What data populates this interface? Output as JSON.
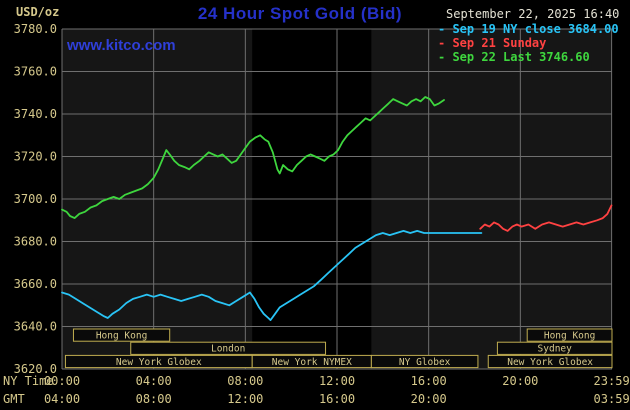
{
  "header": {
    "units": "USD/oz",
    "title": "24 Hour Spot Gold (Bid)",
    "datetime": "September 22, 2025 16:40",
    "watermark": "www.kitco.com"
  },
  "legend": {
    "items": [
      {
        "marker": "-",
        "label": "Sep 19 NY close 3684.00",
        "color": "#29c4f6"
      },
      {
        "marker": "-",
        "label": "Sep 21 Sunday",
        "color": "#ff4242"
      },
      {
        "marker": "-",
        "label": "Sep 22 Last 3746.60",
        "color": "#3ed63e"
      }
    ]
  },
  "axes": {
    "ny_time_label": "NY Time",
    "gmt_label": "GMT"
  },
  "chart_data": {
    "type": "line",
    "title": "24 Hour Spot Gold (Bid)",
    "ylabel": "USD/oz",
    "x_unit": "hours, NY time",
    "xlim": [
      0,
      24
    ],
    "ylim": [
      3620,
      3780
    ],
    "grid": true,
    "legend_position": "top-right",
    "colors": {
      "plot_bg": "#161616",
      "band": "#000000",
      "grid": "#6f6f6f",
      "axis_text": "#d6c98c",
      "session_box": "#c0ad50",
      "title_blue": "#2531c9"
    },
    "y_ticks": [
      {
        "value": 3780,
        "label": "3780.0"
      },
      {
        "value": 3760,
        "label": "3760.0"
      },
      {
        "value": 3740,
        "label": "3740.0"
      },
      {
        "value": 3720,
        "label": "3720.0"
      },
      {
        "value": 3700,
        "label": "3700.0"
      },
      {
        "value": 3680,
        "label": "3680.0"
      },
      {
        "value": 3660,
        "label": "3660.0"
      },
      {
        "value": 3640,
        "label": "3640.0"
      },
      {
        "value": 3620,
        "label": "3620.0"
      }
    ],
    "x_ticks": [
      {
        "hour": 0,
        "ny": "00:00",
        "gmt": "04:00"
      },
      {
        "hour": 4,
        "ny": "04:00",
        "gmt": "08:00"
      },
      {
        "hour": 8,
        "ny": "08:00",
        "gmt": "12:00"
      },
      {
        "hour": 12,
        "ny": "12:00",
        "gmt": "16:00"
      },
      {
        "hour": 16,
        "ny": "16:00",
        "gmt": "20:00"
      },
      {
        "hour": 20,
        "ny": "20:00",
        "gmt": ""
      },
      {
        "hour": 23.983,
        "ny": "23:59",
        "gmt": "03:59"
      }
    ],
    "bands": [
      {
        "from": 8.3,
        "to": 13.5,
        "note": "NYMEX floor session shading"
      }
    ],
    "sessions": [
      {
        "row": 1,
        "from": 0.5,
        "to": 4.7,
        "label": "Hong Kong"
      },
      {
        "row": 1,
        "from": 20.3,
        "to": 24,
        "label": "Hong Kong"
      },
      {
        "row": 2,
        "from": 3.0,
        "to": 11.5,
        "label": "London"
      },
      {
        "row": 2,
        "from": 19.0,
        "to": 24,
        "label": "Sydney"
      },
      {
        "row": 3,
        "from": 0.15,
        "to": 8.3,
        "label": "New York Globex"
      },
      {
        "row": 3,
        "from": 8.3,
        "to": 13.5,
        "label": "New York NYMEX"
      },
      {
        "row": 3,
        "from": 13.5,
        "to": 18.15,
        "label": "NY Globex"
      },
      {
        "row": 3,
        "from": 18.6,
        "to": 24,
        "label": "New York Globex"
      }
    ],
    "series": [
      {
        "id": "sep19-ny-close",
        "name": "Sep 19 NY close 3684.00",
        "color": "#29c4f6",
        "close": 3684.0,
        "points": [
          [
            0,
            3656
          ],
          [
            0.3,
            3655
          ],
          [
            0.6,
            3653
          ],
          [
            0.9,
            3651
          ],
          [
            1.2,
            3649
          ],
          [
            1.5,
            3647
          ],
          [
            1.8,
            3645
          ],
          [
            2,
            3644
          ],
          [
            2.2,
            3646
          ],
          [
            2.5,
            3648
          ],
          [
            2.8,
            3651
          ],
          [
            3.1,
            3653
          ],
          [
            3.4,
            3654
          ],
          [
            3.7,
            3655
          ],
          [
            4,
            3654
          ],
          [
            4.3,
            3655
          ],
          [
            4.6,
            3654
          ],
          [
            4.9,
            3653
          ],
          [
            5.2,
            3652
          ],
          [
            5.5,
            3653
          ],
          [
            5.8,
            3654
          ],
          [
            6.1,
            3655
          ],
          [
            6.4,
            3654
          ],
          [
            6.7,
            3652
          ],
          [
            7,
            3651
          ],
          [
            7.3,
            3650
          ],
          [
            7.6,
            3652
          ],
          [
            7.9,
            3654
          ],
          [
            8.2,
            3656
          ],
          [
            8.4,
            3653
          ],
          [
            8.6,
            3649
          ],
          [
            8.8,
            3646
          ],
          [
            9,
            3644
          ],
          [
            9.1,
            3643
          ],
          [
            9.3,
            3646
          ],
          [
            9.5,
            3649
          ],
          [
            9.8,
            3651
          ],
          [
            10.1,
            3653
          ],
          [
            10.4,
            3655
          ],
          [
            10.7,
            3657
          ],
          [
            11,
            3659
          ],
          [
            11.3,
            3662
          ],
          [
            11.6,
            3665
          ],
          [
            11.9,
            3668
          ],
          [
            12.2,
            3671
          ],
          [
            12.5,
            3674
          ],
          [
            12.8,
            3677
          ],
          [
            13.1,
            3679
          ],
          [
            13.4,
            3681
          ],
          [
            13.7,
            3683
          ],
          [
            14,
            3684
          ],
          [
            14.3,
            3683
          ],
          [
            14.6,
            3684
          ],
          [
            14.9,
            3685
          ],
          [
            15.2,
            3684
          ],
          [
            15.5,
            3685
          ],
          [
            15.8,
            3684
          ],
          [
            16.1,
            3684
          ],
          [
            16.5,
            3684
          ],
          [
            17.2,
            3684
          ],
          [
            18.3,
            3684
          ]
        ]
      },
      {
        "id": "sep21-sunday",
        "name": "Sep 21 Sunday",
        "color": "#ff4242",
        "points": [
          [
            18.25,
            3686
          ],
          [
            18.45,
            3688
          ],
          [
            18.65,
            3687
          ],
          [
            18.85,
            3689
          ],
          [
            19.05,
            3688
          ],
          [
            19.25,
            3686
          ],
          [
            19.45,
            3685
          ],
          [
            19.65,
            3687
          ],
          [
            19.85,
            3688
          ],
          [
            20.05,
            3687
          ],
          [
            20.35,
            3688
          ],
          [
            20.65,
            3686
          ],
          [
            20.95,
            3688
          ],
          [
            21.25,
            3689
          ],
          [
            21.55,
            3688
          ],
          [
            21.85,
            3687
          ],
          [
            22.15,
            3688
          ],
          [
            22.45,
            3689
          ],
          [
            22.75,
            3688
          ],
          [
            23.05,
            3689
          ],
          [
            23.35,
            3690
          ],
          [
            23.6,
            3691
          ],
          [
            23.8,
            3693
          ],
          [
            23.98,
            3697
          ]
        ]
      },
      {
        "id": "sep22-today",
        "name": "Sep 22 Last 3746.60",
        "color": "#3ed63e",
        "last": 3746.6,
        "points": [
          [
            0,
            3695
          ],
          [
            0.2,
            3694
          ],
          [
            0.35,
            3692
          ],
          [
            0.55,
            3691
          ],
          [
            0.75,
            3693
          ],
          [
            1,
            3694
          ],
          [
            1.25,
            3696
          ],
          [
            1.5,
            3697
          ],
          [
            1.75,
            3699
          ],
          [
            2,
            3700
          ],
          [
            2.25,
            3701
          ],
          [
            2.5,
            3700
          ],
          [
            2.75,
            3702
          ],
          [
            3,
            3703
          ],
          [
            3.25,
            3704
          ],
          [
            3.5,
            3705
          ],
          [
            3.75,
            3707
          ],
          [
            4,
            3710
          ],
          [
            4.2,
            3714
          ],
          [
            4.4,
            3719
          ],
          [
            4.55,
            3723
          ],
          [
            4.7,
            3721
          ],
          [
            4.9,
            3718
          ],
          [
            5.1,
            3716
          ],
          [
            5.35,
            3715
          ],
          [
            5.55,
            3714
          ],
          [
            5.75,
            3716
          ],
          [
            6,
            3718
          ],
          [
            6.2,
            3720
          ],
          [
            6.4,
            3722
          ],
          [
            6.6,
            3721
          ],
          [
            6.8,
            3720
          ],
          [
            7,
            3721
          ],
          [
            7.2,
            3719
          ],
          [
            7.4,
            3717
          ],
          [
            7.6,
            3718
          ],
          [
            7.8,
            3721
          ],
          [
            8,
            3724
          ],
          [
            8.2,
            3727
          ],
          [
            8.45,
            3729
          ],
          [
            8.65,
            3730
          ],
          [
            8.85,
            3728
          ],
          [
            9,
            3727
          ],
          [
            9.2,
            3722
          ],
          [
            9.4,
            3714
          ],
          [
            9.5,
            3712
          ],
          [
            9.65,
            3716
          ],
          [
            9.85,
            3714
          ],
          [
            10.05,
            3713
          ],
          [
            10.25,
            3716
          ],
          [
            10.45,
            3718
          ],
          [
            10.65,
            3720
          ],
          [
            10.85,
            3721
          ],
          [
            11.05,
            3720
          ],
          [
            11.25,
            3719
          ],
          [
            11.45,
            3718
          ],
          [
            11.65,
            3720
          ],
          [
            11.85,
            3721
          ],
          [
            12.05,
            3723
          ],
          [
            12.25,
            3727
          ],
          [
            12.45,
            3730
          ],
          [
            12.65,
            3732
          ],
          [
            12.85,
            3734
          ],
          [
            13.05,
            3736
          ],
          [
            13.25,
            3738
          ],
          [
            13.45,
            3737
          ],
          [
            13.65,
            3739
          ],
          [
            13.85,
            3741
          ],
          [
            14.05,
            3743
          ],
          [
            14.25,
            3745
          ],
          [
            14.45,
            3747
          ],
          [
            14.65,
            3746
          ],
          [
            14.85,
            3745
          ],
          [
            15.05,
            3744
          ],
          [
            15.25,
            3746
          ],
          [
            15.45,
            3747
          ],
          [
            15.65,
            3746
          ],
          [
            15.85,
            3748
          ],
          [
            16.05,
            3747
          ],
          [
            16.25,
            3744
          ],
          [
            16.45,
            3745
          ],
          [
            16.67,
            3746.6
          ]
        ]
      }
    ]
  }
}
